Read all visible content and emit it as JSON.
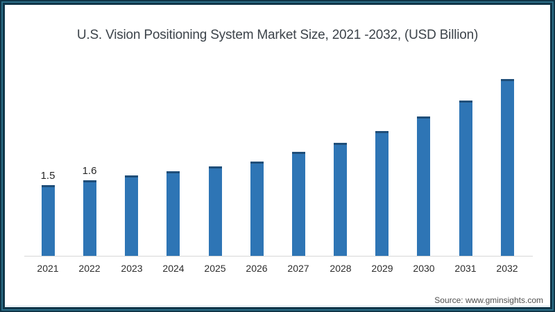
{
  "header": {
    "title": "U.S. Vision Positioning System Market Size, 2021 -2032, (USD Billion)"
  },
  "footer": {
    "source": "Source: www.gminsights.com"
  },
  "frame": {
    "border_dark": "#0f3548",
    "border_light": "#2d7089"
  },
  "chart_data": {
    "type": "bar",
    "title": "U.S. Vision Positioning System Market Size, 2021 -2032, (USD Billion)",
    "unit": "USD Billion",
    "categories": [
      "2021",
      "2022",
      "2023",
      "2024",
      "2025",
      "2026",
      "2027",
      "2028",
      "2029",
      "2030",
      "2031",
      "2032"
    ],
    "values": [
      1.5,
      1.6,
      1.7,
      1.8,
      1.9,
      2.0,
      2.2,
      2.4,
      2.65,
      2.95,
      3.3,
      3.75
    ],
    "data_labels": [
      "1.5",
      "1.6",
      null,
      null,
      null,
      null,
      null,
      null,
      null,
      null,
      null,
      null
    ],
    "xlabel": "",
    "ylabel": "",
    "ylim": [
      0,
      4
    ],
    "grid": false,
    "legend_position": "none",
    "bar_color": "#2e75b5",
    "bar_cap_color": "#1f4e79",
    "axis_color": "#d7d7d7"
  }
}
